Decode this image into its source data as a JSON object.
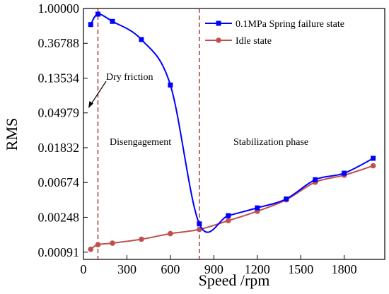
{
  "chart_data": {
    "type": "line",
    "xlabel": "Speed /rpm",
    "ylabel": "RMS",
    "x_scale": "linear",
    "y_scale": "log",
    "xlim": [
      0,
      2080
    ],
    "ylim": [
      0.00074,
      1.0
    ],
    "x_ticks": [
      0,
      300,
      600,
      900,
      1200,
      1500,
      1800
    ],
    "x_tick_labels": [
      "0",
      "300",
      "600",
      "900",
      "1200",
      "1500",
      "1800"
    ],
    "y_ticks": [
      0.00091,
      0.00248,
      0.00674,
      0.01832,
      0.04979,
      0.13534,
      0.36788,
      1.0
    ],
    "y_tick_labels": [
      "0.00091",
      "0.00248",
      "0.00674",
      "0.01832",
      "0.04979",
      "0.13534",
      "0.36788",
      "1.00000"
    ],
    "legend_position": "top-right",
    "series": [
      {
        "name": "0.1MPa Spring failure state",
        "color": "#0000FF",
        "marker": "square",
        "smooth": true,
        "points": [
          [
            50,
            0.63
          ],
          [
            100,
            0.85
          ],
          [
            200,
            0.69
          ],
          [
            400,
            0.41
          ],
          [
            600,
            0.111
          ],
          [
            800,
            0.00205
          ],
          [
            1000,
            0.0026
          ],
          [
            1200,
            0.00325
          ],
          [
            1400,
            0.0042
          ],
          [
            1600,
            0.0073
          ],
          [
            1800,
            0.0088
          ],
          [
            2000,
            0.0135
          ]
        ]
      },
      {
        "name": "Idle state",
        "color": "#C0504D",
        "marker": "circle",
        "smooth": true,
        "points": [
          [
            50,
            0.00099
          ],
          [
            100,
            0.00113
          ],
          [
            200,
            0.00118
          ],
          [
            400,
            0.00132
          ],
          [
            600,
            0.00155
          ],
          [
            800,
            0.00175
          ],
          [
            1000,
            0.00225
          ],
          [
            1200,
            0.00295
          ],
          [
            1400,
            0.0041
          ],
          [
            1600,
            0.0068
          ],
          [
            1800,
            0.0083
          ],
          [
            2000,
            0.0109
          ]
        ]
      }
    ],
    "annotations": [
      {
        "text": "Dry friction"
      },
      {
        "text": "Disengagement"
      },
      {
        "text": "Stabilization phase"
      }
    ],
    "reference_lines": [
      {
        "x": 100,
        "color": "#A52A2A",
        "style": "dashed"
      },
      {
        "x": 800,
        "color": "#A52A2A",
        "style": "dashed"
      }
    ]
  }
}
